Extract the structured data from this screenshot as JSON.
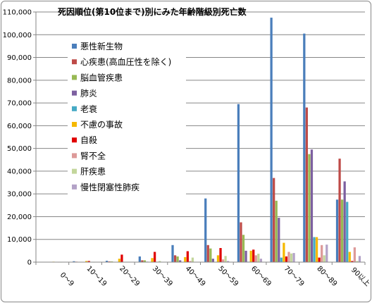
{
  "chart_data": {
    "type": "bar",
    "title": "死因順位(第10位まで)別にみた年齢階級別死亡数",
    "xlabel": "",
    "ylabel": "",
    "ylim": [
      0,
      110000
    ],
    "y_ticks": [
      "0",
      "10,000",
      "20,000",
      "30,000",
      "40,000",
      "50,000",
      "60,000",
      "70,000",
      "80,000",
      "90,000",
      "100,000",
      "110,000"
    ],
    "categories": [
      "0～9",
      "10～19",
      "20～29",
      "30～39",
      "40～49",
      "50～59",
      "60～69",
      "70～79",
      "80～89",
      "90以上"
    ],
    "grid": true,
    "legend_position": "top-left-inside",
    "series": [
      {
        "name": "悪性新生物",
        "color": "#4a7ebb",
        "values": [
          100,
          400,
          600,
          2500,
          7500,
          28000,
          69500,
          107500,
          100500,
          27500
        ]
      },
      {
        "name": "心疾患(高血圧性を除く)",
        "color": "#be4b48",
        "values": [
          100,
          200,
          300,
          800,
          3000,
          7500,
          17500,
          37000,
          68000,
          45500
        ]
      },
      {
        "name": "脳血管疾患",
        "color": "#98b954",
        "values": [
          50,
          100,
          300,
          800,
          2500,
          6000,
          12000,
          27000,
          47500,
          27500
        ]
      },
      {
        "name": "肺炎",
        "color": "#7d60a0",
        "values": [
          50,
          50,
          100,
          200,
          800,
          1500,
          5000,
          19500,
          49500,
          35500
        ]
      },
      {
        "name": "老衰",
        "color": "#46aac5",
        "values": [
          0,
          0,
          0,
          0,
          0,
          0,
          200,
          2000,
          11000,
          26500
        ]
      },
      {
        "name": "不慮の事故",
        "color": "#f5b800",
        "values": [
          200,
          500,
          1500,
          1800,
          2200,
          3000,
          5000,
          8500,
          11000,
          4500
        ]
      },
      {
        "name": "自殺",
        "color": "#e00000",
        "values": [
          0,
          500,
          3300,
          4500,
          4800,
          6200,
          5500,
          2500,
          2000,
          500
        ]
      },
      {
        "name": "腎不全",
        "color": "#dd9a99",
        "values": [
          20,
          30,
          100,
          200,
          500,
          1200,
          3000,
          4500,
          7500,
          6500
        ]
      },
      {
        "name": "肝疾患",
        "color": "#c3d69b",
        "values": [
          10,
          10,
          100,
          500,
          2000,
          2700,
          3700,
          3800,
          3000,
          500
        ]
      },
      {
        "name": "慢性閉塞性肺疾",
        "color": "#b3a2c7",
        "values": [
          0,
          0,
          0,
          50,
          100,
          500,
          1500,
          4000,
          7700,
          2700
        ]
      }
    ]
  }
}
